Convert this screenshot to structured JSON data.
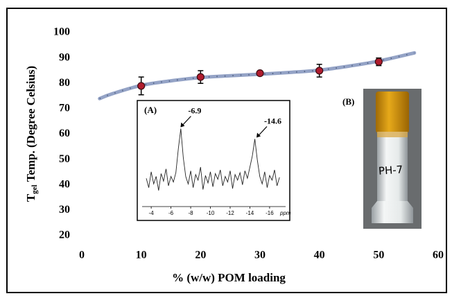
{
  "chart_data": [
    {
      "type": "scatter",
      "xlabel": "% (w/w) POM loading",
      "ylabel": [
        "T",
        "gel",
        " Temp. (Degree Celsius)"
      ],
      "xlim": [
        0,
        60
      ],
      "xticks": [
        0,
        10,
        20,
        30,
        40,
        50,
        60
      ],
      "ylim": [
        20,
        100
      ],
      "yticks": [
        20,
        30,
        40,
        50,
        60,
        70,
        80,
        90,
        100
      ],
      "grid": false,
      "series": [
        {
          "color": "#b01c2e",
          "x": [
            10,
            20,
            30,
            40,
            50
          ],
          "values": [
            79,
            82.5,
            84,
            85,
            88.5
          ],
          "errors": [
            3.5,
            2.5,
            0.6,
            2.5,
            1.5
          ]
        },
        {
          "type": "line",
          "color": "#94a3c6",
          "x": [
            3,
            5,
            10,
            15,
            20,
            25,
            30,
            35,
            40,
            45,
            50,
            56
          ],
          "values": [
            74,
            75.8,
            79.2,
            81,
            82.3,
            83,
            83.6,
            84.3,
            85.2,
            86.8,
            88.8,
            92
          ]
        }
      ]
    },
    {
      "type": "line",
      "label": "(A)",
      "xlabel": "ppm",
      "xlim": [
        -3.5,
        -17.2
      ],
      "xticks": [
        -4,
        -6,
        -8,
        -10,
        -12,
        -14,
        -16
      ],
      "ylim": [
        0,
        100
      ],
      "peaks": [
        {
          "value": -6.9,
          "label": "-6.9"
        },
        {
          "value": -14.6,
          "label": "-14.6"
        }
      ],
      "series": [
        {
          "color": "#222222",
          "x": [
            -3.5,
            -3.75,
            -4,
            -4.25,
            -4.5,
            -4.75,
            -5,
            -5.25,
            -5.5,
            -5.75,
            -6,
            -6.25,
            -6.5,
            -6.75,
            -7,
            -7.25,
            -7.5,
            -7.75,
            -8,
            -8.25,
            -8.5,
            -8.75,
            -9,
            -9.25,
            -9.5,
            -9.75,
            -10,
            -10.25,
            -10.5,
            -10.75,
            -11,
            -11.25,
            -11.5,
            -11.75,
            -12,
            -12.25,
            -12.5,
            -12.75,
            -13,
            -13.25,
            -13.5,
            -13.75,
            -14,
            -14.25,
            -14.5,
            -14.75,
            -15,
            -15.25,
            -15.5,
            -15.75,
            -16,
            -16.25,
            -16.5,
            -16.75,
            -17
          ],
          "values": [
            28,
            18,
            35,
            22,
            30,
            15,
            33,
            25,
            38,
            20,
            30,
            24,
            34,
            60,
            81,
            50,
            30,
            22,
            36,
            18,
            32,
            26,
            40,
            16,
            31,
            23,
            35,
            19,
            33,
            27,
            37,
            20,
            30,
            24,
            36,
            17,
            32,
            26,
            34,
            21,
            36,
            28,
            40,
            52,
            70,
            48,
            30,
            22,
            35,
            18,
            31,
            26,
            37,
            20,
            29
          ]
        }
      ]
    }
  ],
  "photo": {
    "label": "(B)",
    "text": "PH-7"
  }
}
